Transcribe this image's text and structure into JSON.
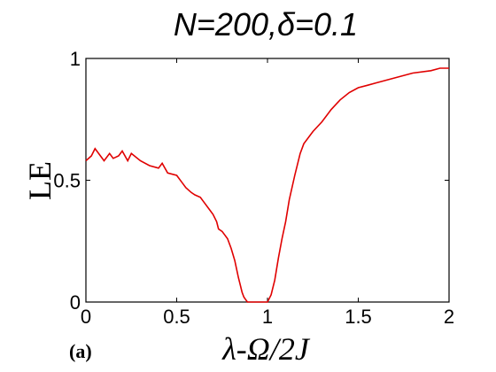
{
  "chart_data": {
    "type": "line",
    "title": "N=200,δ=0.1",
    "xlabel": "λ-Ω/2J",
    "ylabel": "LE",
    "panel_label": "(a)",
    "xlim": [
      0,
      2
    ],
    "ylim": [
      0,
      1
    ],
    "xticks": [
      "0",
      "0.5",
      "1",
      "1.5",
      "2"
    ],
    "yticks": [
      "0",
      "0.5",
      "1"
    ],
    "grid": false,
    "line_color": "#e00000",
    "series": [
      {
        "x": [
          0,
          0.03,
          0.05,
          0.08,
          0.1,
          0.13,
          0.15,
          0.18,
          0.2,
          0.23,
          0.25,
          0.3,
          0.35,
          0.4,
          0.42,
          0.45,
          0.5,
          0.53,
          0.55,
          0.58,
          0.6,
          0.63,
          0.65,
          0.68,
          0.7,
          0.72,
          0.73,
          0.75,
          0.78,
          0.8,
          0.82,
          0.84,
          0.85,
          0.86,
          0.87,
          0.88,
          0.89,
          0.9,
          0.92,
          0.95,
          0.98,
          1.0,
          1.02,
          1.04,
          1.06,
          1.08,
          1.1,
          1.12,
          1.15,
          1.18,
          1.2,
          1.25,
          1.3,
          1.35,
          1.4,
          1.45,
          1.5,
          1.55,
          1.6,
          1.7,
          1.8,
          1.9,
          1.95,
          2.0
        ],
        "y": [
          0.58,
          0.6,
          0.63,
          0.6,
          0.58,
          0.61,
          0.59,
          0.6,
          0.62,
          0.58,
          0.61,
          0.58,
          0.56,
          0.55,
          0.57,
          0.53,
          0.52,
          0.49,
          0.47,
          0.45,
          0.44,
          0.43,
          0.41,
          0.38,
          0.36,
          0.33,
          0.3,
          0.29,
          0.26,
          0.22,
          0.17,
          0.1,
          0.07,
          0.04,
          0.02,
          0.01,
          0.0,
          0.0,
          0.0,
          0.0,
          0.0,
          0.0,
          0.03,
          0.09,
          0.18,
          0.26,
          0.33,
          0.42,
          0.52,
          0.61,
          0.65,
          0.7,
          0.74,
          0.79,
          0.83,
          0.86,
          0.88,
          0.89,
          0.9,
          0.92,
          0.94,
          0.95,
          0.96,
          0.96
        ]
      }
    ]
  }
}
